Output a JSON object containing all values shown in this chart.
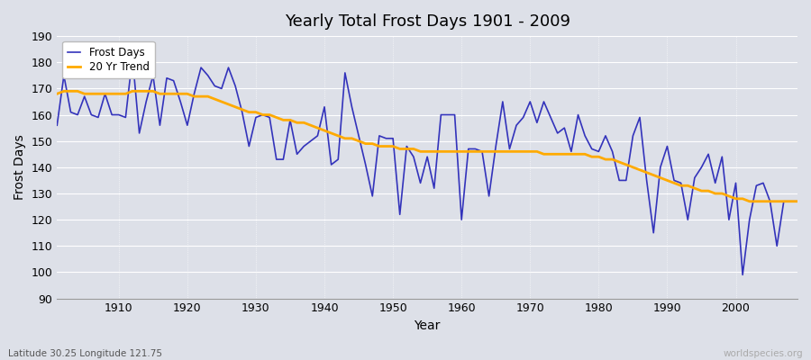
{
  "title": "Yearly Total Frost Days 1901 - 2009",
  "xlabel": "Year",
  "ylabel": "Frost Days",
  "footnote_left": "Latitude 30.25 Longitude 121.75",
  "footnote_right": "worldspecies.org",
  "line_color": "#3333bb",
  "trend_color": "#ffaa00",
  "bg_color": "#dde0e8",
  "grid_color": "#ffffff",
  "ylim": [
    90,
    190
  ],
  "yticks": [
    90,
    100,
    110,
    120,
    130,
    140,
    150,
    160,
    170,
    180,
    190
  ],
  "xlim": [
    1901,
    2009
  ],
  "xticks": [
    1910,
    1920,
    1930,
    1940,
    1950,
    1960,
    1970,
    1980,
    1990,
    2000
  ],
  "frost_days": [
    156,
    175,
    161,
    160,
    167,
    160,
    159,
    168,
    160,
    160,
    159,
    182,
    153,
    165,
    175,
    156,
    174,
    173,
    165,
    156,
    168,
    178,
    175,
    171,
    170,
    178,
    171,
    161,
    148,
    159,
    160,
    159,
    143,
    143,
    158,
    145,
    148,
    150,
    152,
    163,
    141,
    143,
    176,
    163,
    152,
    141,
    129,
    152,
    151,
    151,
    122,
    148,
    144,
    134,
    144,
    132,
    160,
    160,
    160,
    120,
    147,
    147,
    146,
    129,
    148,
    165,
    147,
    156,
    159,
    165,
    157,
    165,
    159,
    153,
    155,
    146,
    160,
    152,
    147,
    146,
    152,
    146,
    135,
    135,
    152,
    159,
    135,
    115,
    140,
    148,
    135,
    134,
    120,
    136,
    140,
    145,
    134,
    144,
    120,
    134,
    99,
    120,
    133,
    134,
    127,
    110,
    127,
    127,
    127
  ],
  "frost_start_year": 1901,
  "trend_years": [
    1901,
    1902,
    1903,
    1904,
    1905,
    1906,
    1907,
    1908,
    1909,
    1910,
    1911,
    1912,
    1913,
    1914,
    1915,
    1916,
    1917,
    1918,
    1919,
    1920,
    1921,
    1922,
    1923,
    1924,
    1925,
    1926,
    1927,
    1928,
    1929,
    1930,
    1931,
    1932,
    1933,
    1934,
    1935,
    1936,
    1937,
    1938,
    1939,
    1940,
    1941,
    1942,
    1943,
    1944,
    1945,
    1946,
    1947,
    1948,
    1949,
    1950,
    1951,
    1952,
    1953,
    1954,
    1955,
    1956,
    1957,
    1958,
    1959,
    1960,
    1961,
    1962,
    1963,
    1964,
    1965,
    1966,
    1967,
    1968,
    1969,
    1970,
    1971,
    1972,
    1973,
    1974,
    1975,
    1976,
    1977,
    1978,
    1979,
    1980,
    1981,
    1982,
    1983,
    1984,
    1985,
    1986,
    1987,
    1988,
    1989,
    1990,
    1991,
    1992,
    1993,
    1994,
    1995,
    1996,
    1997,
    1998,
    1999,
    2000,
    2001,
    2002,
    2003,
    2004,
    2005,
    2006,
    2007,
    2008,
    2009
  ],
  "trend_vals": [
    168,
    169,
    169,
    169,
    168,
    168,
    168,
    168,
    168,
    168,
    168,
    169,
    169,
    169,
    169,
    168,
    168,
    168,
    168,
    168,
    167,
    167,
    167,
    166,
    165,
    164,
    163,
    162,
    161,
    161,
    160,
    160,
    159,
    158,
    158,
    157,
    157,
    156,
    155,
    154,
    153,
    152,
    151,
    151,
    150,
    149,
    149,
    148,
    148,
    148,
    147,
    147,
    147,
    146,
    146,
    146,
    146,
    146,
    146,
    146,
    146,
    146,
    146,
    146,
    146,
    146,
    146,
    146,
    146,
    146,
    146,
    145,
    145,
    145,
    145,
    145,
    145,
    145,
    144,
    144,
    143,
    143,
    142,
    141,
    140,
    139,
    138,
    137,
    136,
    135,
    134,
    133,
    133,
    132,
    131,
    131,
    130,
    130,
    129,
    128,
    128,
    127,
    127,
    127,
    127,
    127,
    127,
    127,
    127
  ]
}
